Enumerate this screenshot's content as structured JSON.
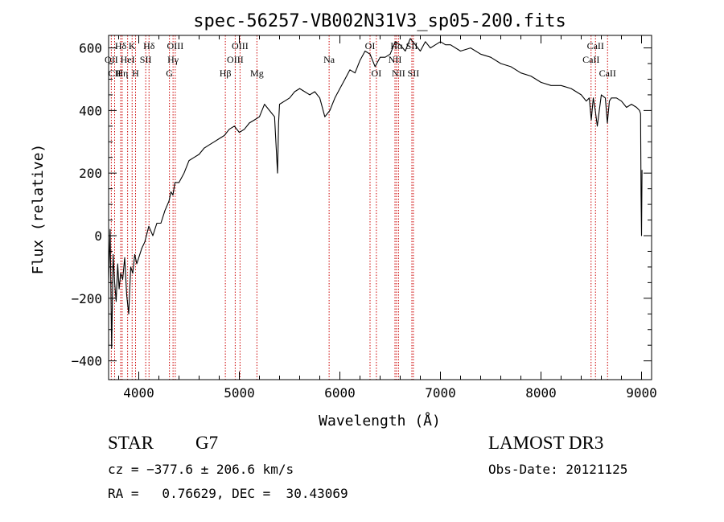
{
  "chart_data": {
    "type": "line",
    "title": "spec-56257-VB002N31V3_sp05-200.fits",
    "xlabel": "Wavelength (Å)",
    "ylabel": "Flux (relative)",
    "xlim": [
      3700,
      9100
    ],
    "ylim": [
      -460,
      640
    ],
    "xticks": [
      4000,
      5000,
      6000,
      7000,
      8000,
      9000
    ],
    "yticks": [
      -400,
      -200,
      0,
      200,
      400,
      600
    ],
    "series": [
      {
        "name": "flux",
        "x": [
          3700,
          3715,
          3730,
          3745,
          3760,
          3775,
          3790,
          3805,
          3820,
          3840,
          3860,
          3880,
          3900,
          3920,
          3940,
          3960,
          3980,
          4000,
          4030,
          4060,
          4100,
          4140,
          4180,
          4220,
          4260,
          4300,
          4320,
          4340,
          4360,
          4400,
          4450,
          4500,
          4550,
          4600,
          4650,
          4700,
          4750,
          4800,
          4850,
          4900,
          4950,
          5000,
          5050,
          5100,
          5150,
          5200,
          5250,
          5300,
          5350,
          5380,
          5390,
          5400,
          5450,
          5500,
          5550,
          5600,
          5650,
          5700,
          5750,
          5800,
          5850,
          5900,
          5950,
          6000,
          6050,
          6100,
          6150,
          6200,
          6250,
          6300,
          6350,
          6400,
          6450,
          6500,
          6550,
          6600,
          6650,
          6700,
          6750,
          6800,
          6850,
          6900,
          6950,
          7000,
          7050,
          7100,
          7200,
          7300,
          7400,
          7500,
          7600,
          7700,
          7800,
          7900,
          8000,
          8100,
          8200,
          8300,
          8400,
          8450,
          8480,
          8500,
          8520,
          8540,
          8560,
          8600,
          8640,
          8660,
          8680,
          8700,
          8750,
          8800,
          8850,
          8900,
          8950,
          8980,
          8990,
          8995,
          9000,
          9005
        ],
        "values": [
          -150,
          20,
          -360,
          -60,
          -150,
          -210,
          -90,
          -170,
          -120,
          -140,
          -70,
          -190,
          -250,
          -100,
          -120,
          -60,
          -90,
          -70,
          -40,
          -20,
          30,
          0,
          40,
          40,
          80,
          110,
          140,
          130,
          170,
          170,
          200,
          240,
          250,
          260,
          280,
          290,
          300,
          310,
          320,
          340,
          350,
          330,
          340,
          360,
          370,
          380,
          420,
          400,
          380,
          200,
          360,
          420,
          430,
          440,
          460,
          470,
          460,
          450,
          460,
          440,
          380,
          400,
          440,
          470,
          500,
          530,
          520,
          560,
          590,
          580,
          540,
          570,
          570,
          580,
          620,
          610,
          590,
          630,
          610,
          590,
          620,
          600,
          610,
          620,
          610,
          610,
          590,
          600,
          580,
          570,
          550,
          540,
          520,
          510,
          490,
          480,
          480,
          470,
          450,
          430,
          440,
          370,
          440,
          400,
          350,
          450,
          440,
          360,
          430,
          440,
          440,
          430,
          410,
          420,
          410,
          400,
          390,
          130,
          0,
          210
        ]
      }
    ],
    "line_labels": [
      {
        "label": "Hδ",
        "x": 3820,
        "row": 1
      },
      {
        "label": "OII",
        "x": 3727,
        "row": 2
      },
      {
        "label": "HeI",
        "x": 3889,
        "row": 2
      },
      {
        "label": "SII",
        "x": 4069,
        "row": 2
      },
      {
        "label": "CII",
        "x": 3760,
        "row": 3
      },
      {
        "label": "Hη",
        "x": 3835,
        "row": 3
      },
      {
        "label": "K",
        "x": 3934,
        "row": 1
      },
      {
        "label": "H",
        "x": 3968,
        "row": 3
      },
      {
        "label": "Hδ",
        "x": 4102,
        "row": 1
      },
      {
        "label": "OIII",
        "x": 4363,
        "row": 1
      },
      {
        "label": "Hγ",
        "x": 4341,
        "row": 2
      },
      {
        "label": "G",
        "x": 4305,
        "row": 3
      },
      {
        "label": "Hβ",
        "x": 4861,
        "row": 3
      },
      {
        "label": "OIII",
        "x": 5007,
        "row": 1
      },
      {
        "label": "OIII",
        "x": 4959,
        "row": 2
      },
      {
        "label": "Mg",
        "x": 5175,
        "row": 3
      },
      {
        "label": "Na",
        "x": 5893,
        "row": 2
      },
      {
        "label": "OI",
        "x": 6300,
        "row": 1
      },
      {
        "label": "OI",
        "x": 6363,
        "row": 3
      },
      {
        "label": "Hα",
        "x": 6563,
        "row": 1
      },
      {
        "label": "SII",
        "x": 6716,
        "row": 1
      },
      {
        "label": "NII",
        "x": 6548,
        "row": 2
      },
      {
        "label": "NII",
        "x": 6583,
        "row": 3
      },
      {
        "label": "SII",
        "x": 6731,
        "row": 3
      },
      {
        "label": "CaII",
        "x": 8542,
        "row": 1
      },
      {
        "label": "CaII",
        "x": 8498,
        "row": 2
      },
      {
        "label": "CaII",
        "x": 8662,
        "row": 3
      }
    ]
  },
  "info": {
    "class_label": "STAR",
    "subclass": "G7",
    "survey": "LAMOST DR3",
    "redshift_line": "cz = −377.6 ± 206.6 km/s",
    "obs_date_line": "Obs-Date: 20121125",
    "coords_line": "RA =   0.76629, DEC =  30.43069"
  },
  "colors": {
    "axis": "#000000",
    "spectrum": "#000000",
    "line_markers": "#cc0000"
  }
}
